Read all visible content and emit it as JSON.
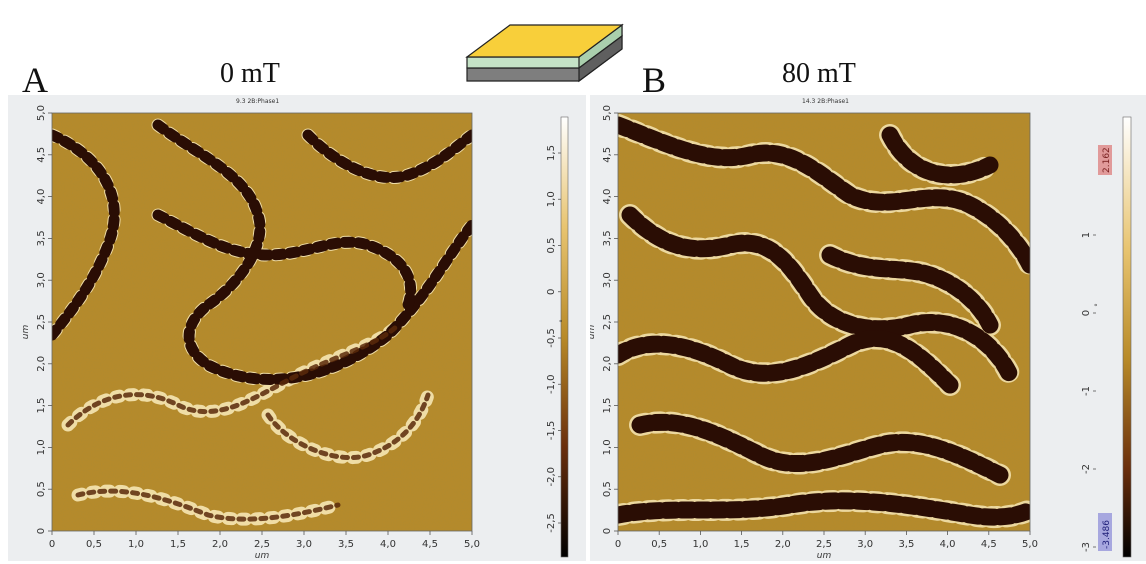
{
  "figure": {
    "panel_a": {
      "letter": "A",
      "field": "0 mT",
      "scan_title": "9.3 2B:Phase1",
      "axis_unit": "um",
      "x_ticks": [
        "0",
        "0,5",
        "1,0",
        "1,5",
        "2,0",
        "2,5",
        "3,0",
        "3,5",
        "4,0",
        "4,5",
        "5,0"
      ],
      "y_ticks": [
        "0",
        "0,5",
        "1,0",
        "1,5",
        "2,0",
        "2,5",
        "3,0",
        "3,5",
        "4,0",
        "4,5",
        "5,0"
      ],
      "colorbar_ticks": [
        "1,5",
        "1,0",
        "0,5",
        "0",
        "-0,5",
        "-1,0",
        "-1,5",
        "-2,0",
        "-2,5"
      ],
      "colorbar_unit": "°"
    },
    "panel_b": {
      "letter": "B",
      "field": "80 mT",
      "scan_title": "14.3 2B:Phase1",
      "axis_unit": "um",
      "x_ticks": [
        "0",
        "0,5",
        "1,0",
        "1,5",
        "2,0",
        "2,5",
        "3,0",
        "3,5",
        "4,0",
        "4,5",
        "5,0"
      ],
      "y_ticks": [
        "0",
        "0,5",
        "1,0",
        "1,5",
        "2,0",
        "2,5",
        "3,0",
        "3,5",
        "4,0",
        "4,5",
        "5,0"
      ],
      "colorbar_ticks": [
        "1",
        "0",
        "-1",
        "-2",
        "-3"
      ],
      "colorbar_unit": "°",
      "colorbar_max": "2.162",
      "colorbar_min": "-3.486"
    },
    "colors": {
      "map_base": "#b88a28",
      "domain_dark": "#2a0d04",
      "domain_bright": "#f6e6b4",
      "layer_top": "#f8cf3a",
      "layer_middle": "#c4e2c6",
      "layer_bottom": "#7e7e7e",
      "max_badge": "#e19a9a",
      "min_badge": "#a7a7df"
    }
  }
}
